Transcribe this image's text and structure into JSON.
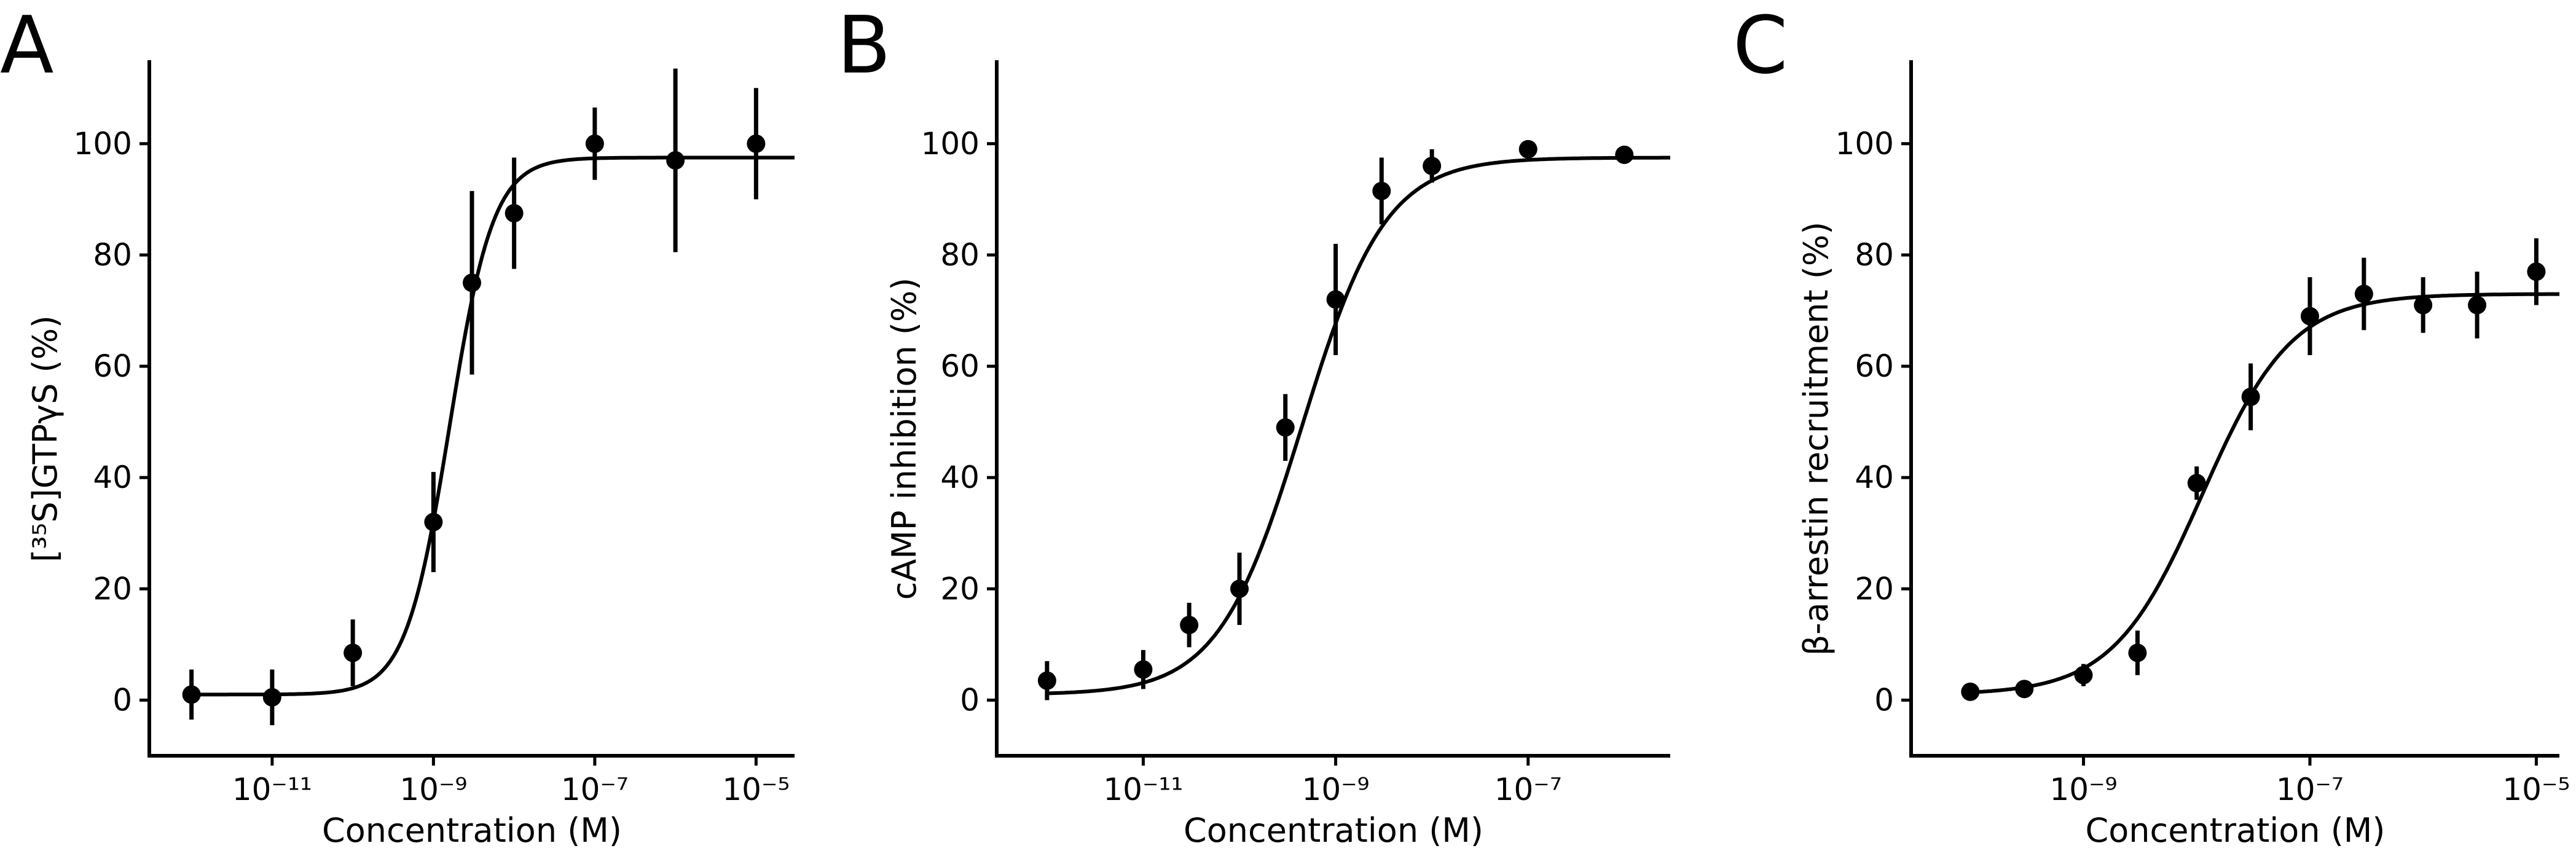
{
  "chart_data": [
    {
      "type": "scatter",
      "panel_label": "A",
      "xlabel": "Concentration (M)",
      "ylabel": "[³⁵S]GTPγS (%)",
      "xscale": "log",
      "xlim": [
        3e-13,
        3e-05
      ],
      "ylim": [
        -10,
        115
      ],
      "xticks": [
        "10⁻¹¹",
        "10⁻⁹",
        "10⁻⁷",
        "10⁻⁵"
      ],
      "yticks": [
        0,
        20,
        40,
        60,
        80,
        100
      ],
      "points": [
        {
          "x": 1e-12,
          "y": 1,
          "err": 4.5
        },
        {
          "x": 1e-11,
          "y": 0.5,
          "err": 5
        },
        {
          "x": 1e-10,
          "y": 8.5,
          "err": 6
        },
        {
          "x": 1e-09,
          "y": 32,
          "err": 9
        },
        {
          "x": 3e-09,
          "y": 75,
          "err": 16.5
        },
        {
          "x": 1e-08,
          "y": 87.5,
          "err": 10
        },
        {
          "x": 1e-07,
          "y": 100,
          "err": 6.5
        },
        {
          "x": 1e-06,
          "y": 97,
          "err": 16.5
        },
        {
          "x": 1e-05,
          "y": 100,
          "err": 10
        }
      ],
      "fit": {
        "bottom": 1,
        "top": 97.5,
        "logEC50": -8.8,
        "hill": 1.6
      }
    },
    {
      "type": "scatter",
      "panel_label": "B",
      "xlabel": "Concentration (M)",
      "ylabel": "cAMP inhibition (%)",
      "xscale": "log",
      "xlim": [
        3e-13,
        3e-06
      ],
      "ylim": [
        -10,
        115
      ],
      "xticks": [
        "10⁻¹¹",
        "10⁻⁹",
        "10⁻⁷"
      ],
      "yticks": [
        0,
        20,
        40,
        60,
        80,
        100
      ],
      "points": [
        {
          "x": 1e-12,
          "y": 3.5,
          "err": 3.5
        },
        {
          "x": 1e-11,
          "y": 5.5,
          "err": 3.5
        },
        {
          "x": 3e-11,
          "y": 13.5,
          "err": 4
        },
        {
          "x": 1e-10,
          "y": 20,
          "err": 6.5
        },
        {
          "x": 3e-10,
          "y": 49,
          "err": 6
        },
        {
          "x": 1e-09,
          "y": 72,
          "err": 10
        },
        {
          "x": 3e-09,
          "y": 91.5,
          "err": 6
        },
        {
          "x": 1e-08,
          "y": 96,
          "err": 3
        },
        {
          "x": 1e-07,
          "y": 99,
          "err": 0
        },
        {
          "x": 1e-06,
          "y": 98,
          "err": 0
        }
      ],
      "fit": {
        "bottom": 1,
        "top": 97.5,
        "logEC50": -9.35,
        "hill": 1.0
      }
    },
    {
      "type": "scatter",
      "panel_label": "C",
      "xlabel": "Concentration (M)",
      "ylabel": "β-arrestin recruitment (%)",
      "xscale": "log",
      "xlim": [
        3e-11,
        1.6e-05
      ],
      "ylim": [
        -10,
        115
      ],
      "xticks": [
        "10⁻⁹",
        "10⁻⁷",
        "10⁻⁵"
      ],
      "yticks": [
        0,
        20,
        40,
        60,
        80,
        100
      ],
      "points": [
        {
          "x": 1e-10,
          "y": 1.5,
          "err": 0
        },
        {
          "x": 3e-10,
          "y": 2,
          "err": 0
        },
        {
          "x": 1e-09,
          "y": 4.5,
          "err": 2
        },
        {
          "x": 3e-09,
          "y": 8.5,
          "err": 4
        },
        {
          "x": 1e-08,
          "y": 39,
          "err": 3
        },
        {
          "x": 3e-08,
          "y": 54.5,
          "err": 6
        },
        {
          "x": 1e-07,
          "y": 69,
          "err": 7
        },
        {
          "x": 3e-07,
          "y": 73,
          "err": 6.5
        },
        {
          "x": 1e-06,
          "y": 71,
          "err": 5
        },
        {
          "x": 3e-06,
          "y": 71,
          "err": 6
        },
        {
          "x": 1e-05,
          "y": 77,
          "err": 6
        }
      ],
      "fit": {
        "bottom": 1,
        "top": 73,
        "logEC50": -7.95,
        "hill": 1.1
      }
    }
  ]
}
